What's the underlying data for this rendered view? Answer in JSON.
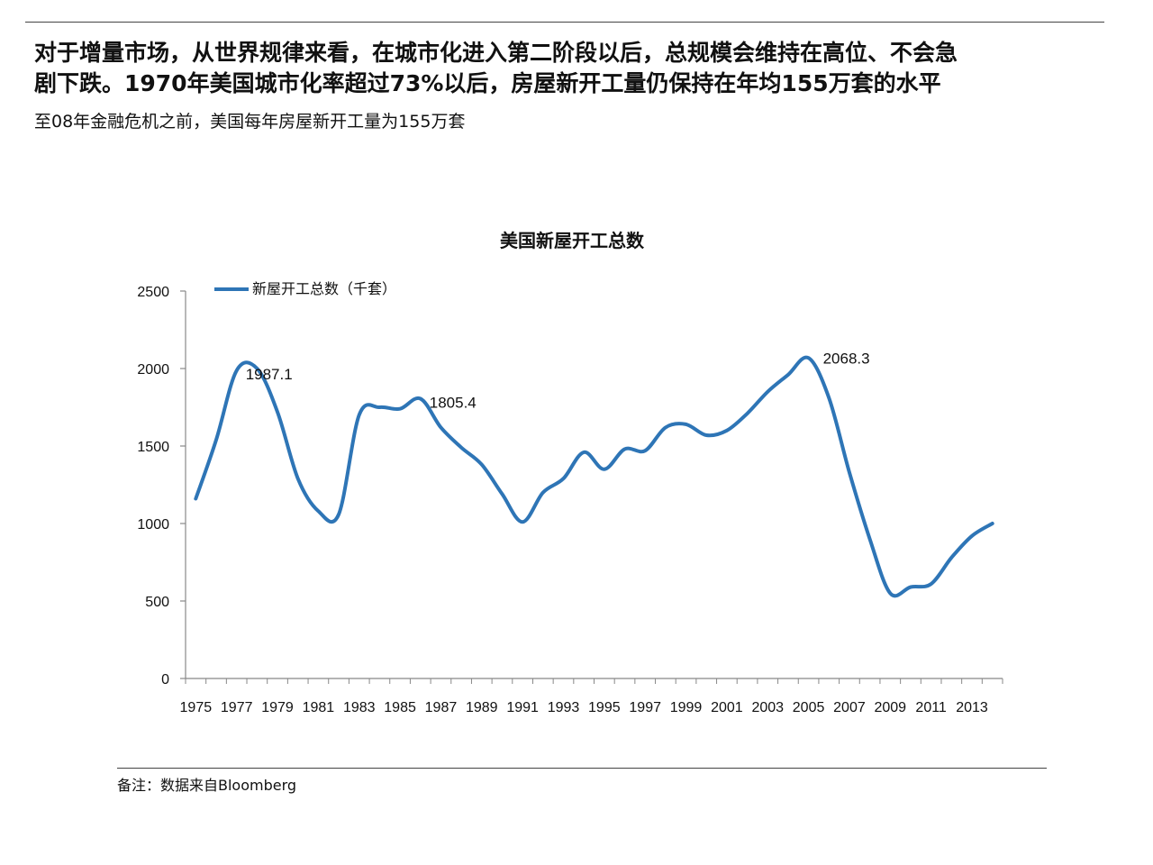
{
  "headline": {
    "line1": "对于增量市场，从世界规律来看，在城市化进入第二阶段以后，总规模会维持在高位、不会急",
    "line2": "剧下跌。1970年美国城市化率超过73%以后，房屋新开工量仍保持在年均155万套的水平"
  },
  "subtitle": "至08年金融危机之前，美国每年房屋新开工量为155万套",
  "footnote": "备注：数据来自Bloomberg",
  "colors": {
    "series": "#2e75b6",
    "axis": "#888888",
    "text": "#111111"
  },
  "chart_data": {
    "type": "line",
    "title": "美国新屋开工总数",
    "legend": {
      "label": "新屋开工总数（千套）",
      "position": "top-left"
    },
    "x": [
      1975,
      1976,
      1977,
      1978,
      1979,
      1980,
      1981,
      1982,
      1983,
      1984,
      1985,
      1986,
      1987,
      1988,
      1989,
      1990,
      1991,
      1992,
      1993,
      1994,
      1995,
      1996,
      1997,
      1998,
      1999,
      2000,
      2001,
      2002,
      2003,
      2004,
      2005,
      2006,
      2007,
      2008,
      2009,
      2010,
      2011,
      2012,
      2013,
      2014
    ],
    "series": [
      {
        "name": "新屋开工总数（千套）",
        "values": [
          1160,
          1540,
          1987.1,
          2000,
          1720,
          1290,
          1080,
          1060,
          1700,
          1750,
          1740,
          1805.4,
          1620,
          1490,
          1380,
          1190,
          1010,
          1200,
          1290,
          1460,
          1350,
          1480,
          1470,
          1620,
          1640,
          1570,
          1600,
          1710,
          1850,
          1960,
          2068.3,
          1810,
          1330,
          900,
          550,
          590,
          610,
          780,
          920,
          1000
        ]
      }
    ],
    "annotations": [
      {
        "x": 1977,
        "label": "1987.1"
      },
      {
        "x": 1986,
        "label": "1805.4"
      },
      {
        "x": 2005,
        "label": "2068.3"
      }
    ],
    "x_tick_labels": [
      "1975",
      "1977",
      "1979",
      "1981",
      "1983",
      "1985",
      "1987",
      "1989",
      "1991",
      "1993",
      "1995",
      "1997",
      "1999",
      "2001",
      "2003",
      "2005",
      "2007",
      "2009",
      "2011",
      "2013"
    ],
    "y_ticks": [
      0,
      500,
      1000,
      1500,
      2000,
      2500
    ],
    "ylim": [
      0,
      2500
    ],
    "xlabel": "",
    "ylabel": "",
    "grid": false
  }
}
